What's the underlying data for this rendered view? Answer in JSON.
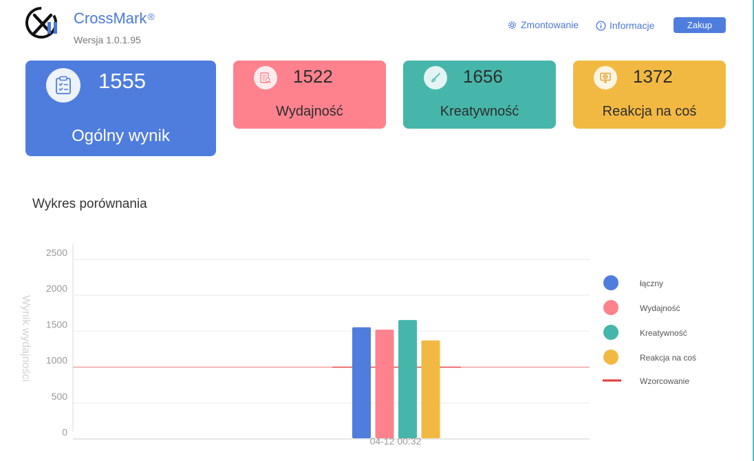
{
  "header": {
    "app_name": "CrossMark",
    "registered": "®",
    "version": "Wersja 1.0.1.95",
    "nav_mount": "Zmontowanie",
    "nav_info": "Informacje",
    "buy_label": "Zakup"
  },
  "cards": {
    "overall": {
      "score": "1555",
      "label": "Ogólny wynik",
      "icon": "clipboard-check-icon"
    },
    "productivity": {
      "score": "1522",
      "label": "Wydajność",
      "icon": "document-search-icon"
    },
    "creativity": {
      "score": "1656",
      "label": "Kreatywność",
      "icon": "brush-icon"
    },
    "responsiveness": {
      "score": "1372",
      "label": "Reakcja na coś",
      "icon": "monitor-globe-icon"
    }
  },
  "colors": {
    "overall": "#4f7ddd",
    "productivity": "#fd828e",
    "creativity": "#46b6ab",
    "responsiveness": "#f2b942",
    "baseline": "#e53935"
  },
  "chart_title": "Wykres porównania",
  "chart_data": {
    "type": "bar",
    "categories": [
      "04-12 00:32"
    ],
    "series": [
      {
        "name": "łączny",
        "values": [
          1555
        ]
      },
      {
        "name": "Wydajność",
        "values": [
          1522
        ]
      },
      {
        "name": "Kreatywność",
        "values": [
          1656
        ]
      },
      {
        "name": "Reakcja na coś",
        "values": [
          1372
        ]
      }
    ],
    "reference_line": {
      "name": "Wzorcowanie",
      "value": 1000
    },
    "ylabel": "Wynik wydajności",
    "ylim": [
      0,
      2500
    ],
    "yticks": [
      0,
      500,
      1000,
      1500,
      2000,
      2500
    ],
    "grid": true,
    "legend_position": "right"
  }
}
